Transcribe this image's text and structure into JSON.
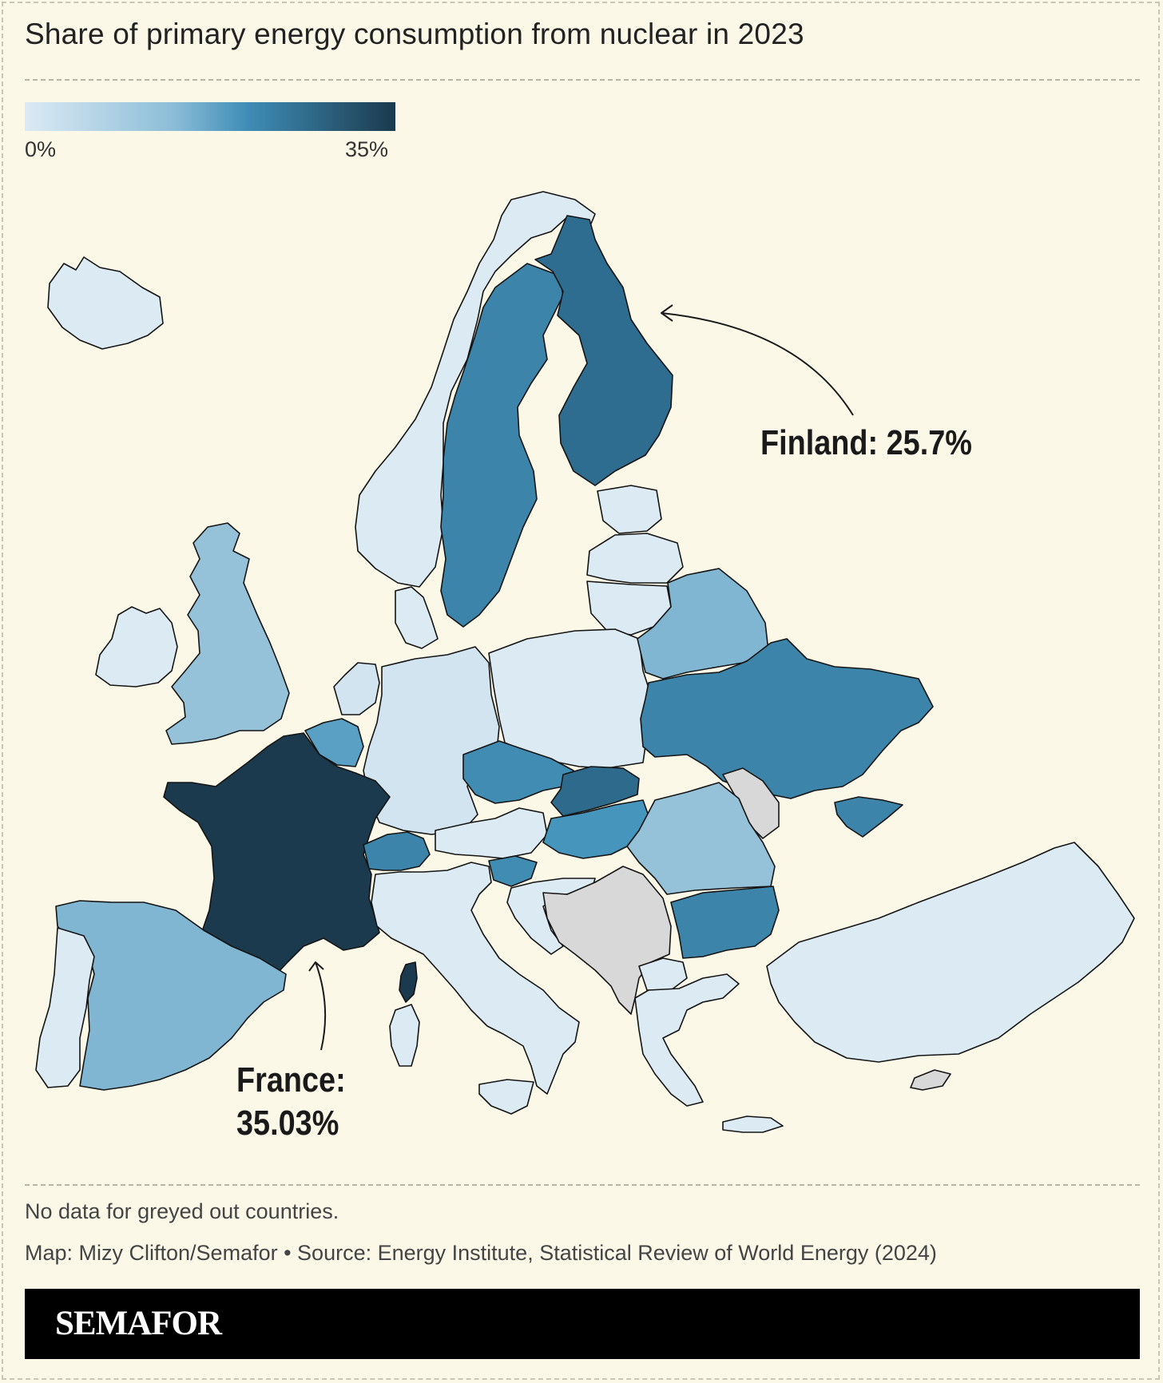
{
  "title": "Share of primary energy consumption from nuclear in 2023",
  "legend": {
    "min_label": "0%",
    "max_label": "35%",
    "colors": [
      "#dceaf4",
      "#a9cce0",
      "#4695bd",
      "#2d6a8c",
      "#1b3a4d"
    ]
  },
  "no_data_color": "#d8d8d8",
  "map": {
    "countries": [
      {
        "id": "iceland",
        "level": 0
      },
      {
        "id": "ireland",
        "level": 0
      },
      {
        "id": "united-kingdom",
        "level": 0.3
      },
      {
        "id": "norway",
        "level": 0
      },
      {
        "id": "sweden",
        "level": 0.6
      },
      {
        "id": "finland",
        "level": 0.73
      },
      {
        "id": "estonia",
        "level": 0
      },
      {
        "id": "latvia",
        "level": 0
      },
      {
        "id": "lithuania",
        "level": 0
      },
      {
        "id": "denmark",
        "level": 0
      },
      {
        "id": "netherlands",
        "level": 0.05
      },
      {
        "id": "belgium",
        "level": 0.45
      },
      {
        "id": "germany",
        "level": 0.05
      },
      {
        "id": "poland",
        "level": 0
      },
      {
        "id": "belarus",
        "level": 0.35
      },
      {
        "id": "ukraine",
        "level": 0.6
      },
      {
        "id": "moldova",
        "level": null
      },
      {
        "id": "france",
        "level": 1.0
      },
      {
        "id": "spain",
        "level": 0.35
      },
      {
        "id": "portugal",
        "level": 0
      },
      {
        "id": "switzerland",
        "level": 0.6
      },
      {
        "id": "austria",
        "level": 0
      },
      {
        "id": "czechia",
        "level": 0.55
      },
      {
        "id": "slovakia",
        "level": 0.75
      },
      {
        "id": "hungary",
        "level": 0.5
      },
      {
        "id": "slovenia",
        "level": 0.55
      },
      {
        "id": "croatia",
        "level": 0
      },
      {
        "id": "romania",
        "level": 0.3
      },
      {
        "id": "bulgaria",
        "level": 0.6
      },
      {
        "id": "balkans-nodata",
        "level": null
      },
      {
        "id": "greece",
        "level": 0
      },
      {
        "id": "north-macedonia",
        "level": 0
      },
      {
        "id": "italy",
        "level": 0
      },
      {
        "id": "corsica",
        "level": 1.0
      },
      {
        "id": "turkey",
        "level": 0
      },
      {
        "id": "cyprus",
        "level": null
      }
    ]
  },
  "annotations": {
    "finland": "Finland: 25.7%",
    "france_line1": "France:",
    "france_line2": "35.03%"
  },
  "footer": {
    "note": "No data for greyed out countries.",
    "credit": "Map: Mizy Clifton/Semafor • Source: Energy Institute, Statistical Review of World Energy (2024)"
  },
  "brand": "SEMAFOR"
}
